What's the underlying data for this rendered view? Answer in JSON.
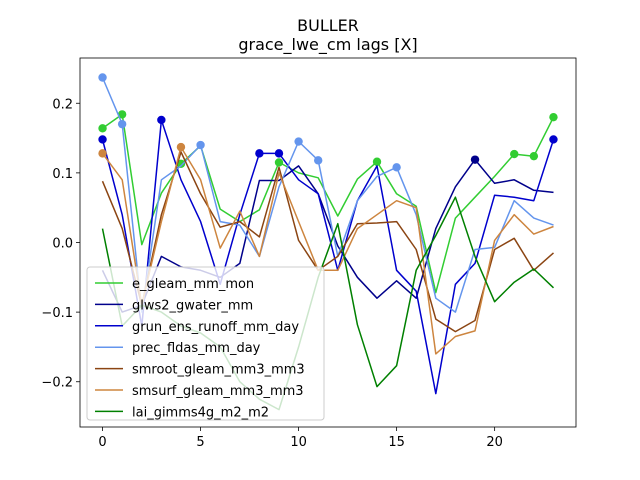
{
  "chart_data": {
    "type": "line",
    "title": "BULLER",
    "subtitle": "grace_lwe_cm lags [X]",
    "xlabel": "",
    "ylabel": "",
    "xlim": [
      -1.15,
      24.15
    ],
    "ylim": [
      -0.265,
      0.265
    ],
    "xticks": [
      0,
      5,
      10,
      15,
      20
    ],
    "yticks": [
      -0.2,
      -0.1,
      0.0,
      0.1,
      0.2
    ],
    "ytick_labels": [
      "−0.2",
      "−0.1",
      "0.0",
      "0.1",
      "0.2"
    ],
    "legend_position": "lower-left",
    "x": [
      0,
      1,
      2,
      3,
      4,
      5,
      6,
      7,
      8,
      9,
      10,
      11,
      12,
      13,
      14,
      15,
      16,
      17,
      18,
      19,
      20,
      21,
      22,
      23
    ],
    "series": [
      {
        "name": "e_gleam_mm_mon",
        "color": "#32cd32",
        "values": [
          0.164,
          0.184,
          -0.003,
          0.071,
          0.113,
          0.139,
          0.048,
          0.03,
          0.047,
          0.115,
          0.1,
          0.093,
          0.038,
          0.091,
          0.116,
          0.07,
          0.052,
          -0.072,
          0.035,
          0.065,
          0.095,
          0.127,
          0.124,
          0.18
        ],
        "markers": [
          0,
          1,
          4,
          9,
          14,
          21,
          22,
          23
        ]
      },
      {
        "name": "glws2_gwater_mm",
        "color": "#00008b",
        "values": [
          -0.04,
          -0.1,
          -0.09,
          -0.02,
          -0.035,
          -0.04,
          -0.05,
          -0.03,
          0.089,
          0.089,
          0.11,
          0.07,
          -0.005,
          -0.05,
          -0.08,
          -0.055,
          -0.08,
          0.02,
          0.08,
          0.119,
          0.085,
          0.09,
          0.075,
          0.072
        ],
        "markers": [
          19
        ]
      },
      {
        "name": "grun_ens_runoff_mm_day",
        "color": "#0000cd",
        "values": [
          0.148,
          0.04,
          -0.12,
          0.176,
          0.09,
          0.03,
          -0.06,
          0.04,
          0.128,
          0.128,
          0.09,
          0.07,
          -0.04,
          0.06,
          0.11,
          -0.04,
          -0.07,
          -0.217,
          -0.06,
          -0.03,
          0.068,
          0.065,
          0.06,
          0.148
        ],
        "markers": [
          0,
          3,
          8,
          9,
          23
        ]
      },
      {
        "name": "prec_fldas_mm_day",
        "color": "#6495ed",
        "values": [
          0.237,
          0.17,
          -0.1,
          0.09,
          0.11,
          0.14,
          0.03,
          0.025,
          -0.02,
          0.08,
          0.145,
          0.118,
          -0.02,
          0.06,
          0.095,
          0.108,
          0.04,
          -0.08,
          -0.1,
          -0.01,
          -0.007,
          0.06,
          0.035,
          0.025
        ],
        "markers": [
          0,
          1,
          5,
          10,
          11,
          15
        ]
      },
      {
        "name": "smroot_gleam_mm3_mm3",
        "color": "#8b4513",
        "values": [
          0.088,
          0.02,
          -0.09,
          0.04,
          0.13,
          0.07,
          0.022,
          0.03,
          0.008,
          0.108,
          0.003,
          -0.04,
          -0.02,
          0.027,
          0.028,
          0.03,
          -0.01,
          -0.11,
          -0.128,
          -0.112,
          -0.01,
          0.006,
          -0.04,
          -0.015
        ],
        "markers": []
      },
      {
        "name": "smsurf_gleam_mm3_mm3",
        "color": "#cd853f",
        "values": [
          0.128,
          0.09,
          -0.09,
          0.03,
          0.137,
          0.09,
          -0.008,
          0.045,
          -0.02,
          0.1,
          0.03,
          -0.04,
          -0.04,
          0.02,
          0.04,
          0.06,
          0.05,
          -0.16,
          -0.135,
          -0.127,
          0.003,
          0.04,
          0.012,
          0.023
        ],
        "markers": [
          0,
          4
        ]
      },
      {
        "name": "lai_gimms4g_m2_m2",
        "color": "#008000",
        "values": [
          0.02,
          -0.12,
          -0.09,
          -0.1,
          -0.12,
          -0.13,
          -0.15,
          -0.2,
          -0.225,
          -0.24,
          -0.15,
          -0.05,
          0.027,
          -0.118,
          -0.207,
          -0.177,
          -0.04,
          0.01,
          0.065,
          -0.02,
          -0.085,
          -0.057,
          -0.038,
          -0.065
        ],
        "markers": []
      }
    ]
  }
}
